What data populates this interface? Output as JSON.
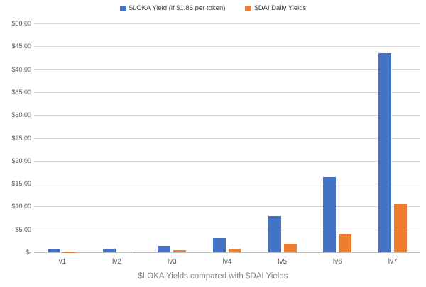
{
  "chart_data": {
    "type": "bar",
    "title": "$LOKA Yields compared with $DAI Yields",
    "categories": [
      "lv1",
      "lv2",
      "lv3",
      "lv4",
      "lv5",
      "lv6",
      "lv7"
    ],
    "series": [
      {
        "name": "$LOKA Yield (if $1.86 per token)",
        "color": "#4472C4",
        "values": [
          0.65,
          0.85,
          1.45,
          3.1,
          7.9,
          16.4,
          43.5
        ]
      },
      {
        "name": "$DAI Daily Yields",
        "color": "#ED7D31",
        "values": [
          0.02,
          0.15,
          0.4,
          0.75,
          1.85,
          4.0,
          10.5
        ]
      }
    ],
    "ylim": [
      0,
      50
    ],
    "ytick_step": 5,
    "ytick_labels": [
      "$-",
      "$5.00",
      "$10.00",
      "$15.00",
      "$20.00",
      "$25.00",
      "$30.00",
      "$35.00",
      "$40.00",
      "$45.00",
      "$50.00"
    ],
    "grid": true,
    "legend_position": "top",
    "xlabel": "",
    "ylabel": ""
  },
  "colors": {
    "background": "#ffffff",
    "grid": "#d9d9d9",
    "axis_text": "#595959",
    "legend_text": "#3b3b3b",
    "title_text": "#808080"
  }
}
